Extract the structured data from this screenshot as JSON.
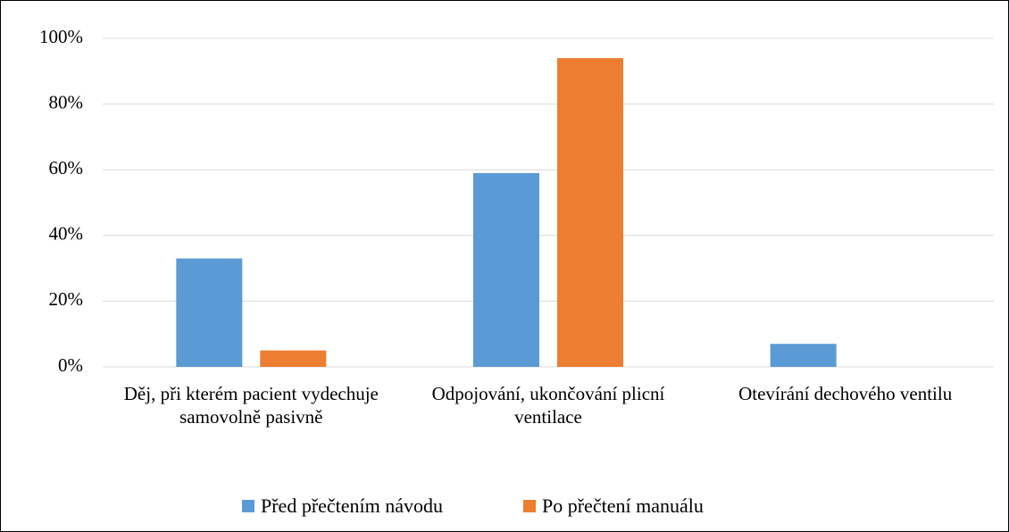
{
  "chart_data": {
    "type": "bar",
    "categories": [
      "Děj, při kterém pacient vydechuje samovolně pasivně",
      "Odpojování, ukončování plicní ventilace",
      "Otevírání dechového ventilu"
    ],
    "series": [
      {
        "name": "Před přečtením návodu",
        "color": "#5b9bd5",
        "values": [
          33,
          59,
          7
        ]
      },
      {
        "name": "Po přečtení manuálu",
        "color": "#ed7d31",
        "values": [
          5,
          94,
          0
        ]
      }
    ],
    "ylim": [
      0,
      100
    ],
    "yticks": [
      {
        "value": 0,
        "label": "0%"
      },
      {
        "value": 20,
        "label": "20%"
      },
      {
        "value": 40,
        "label": "40%"
      },
      {
        "value": 60,
        "label": "60%"
      },
      {
        "value": 80,
        "label": "80%"
      },
      {
        "value": 100,
        "label": "100%"
      }
    ],
    "grid": true,
    "legend": "bottom"
  }
}
